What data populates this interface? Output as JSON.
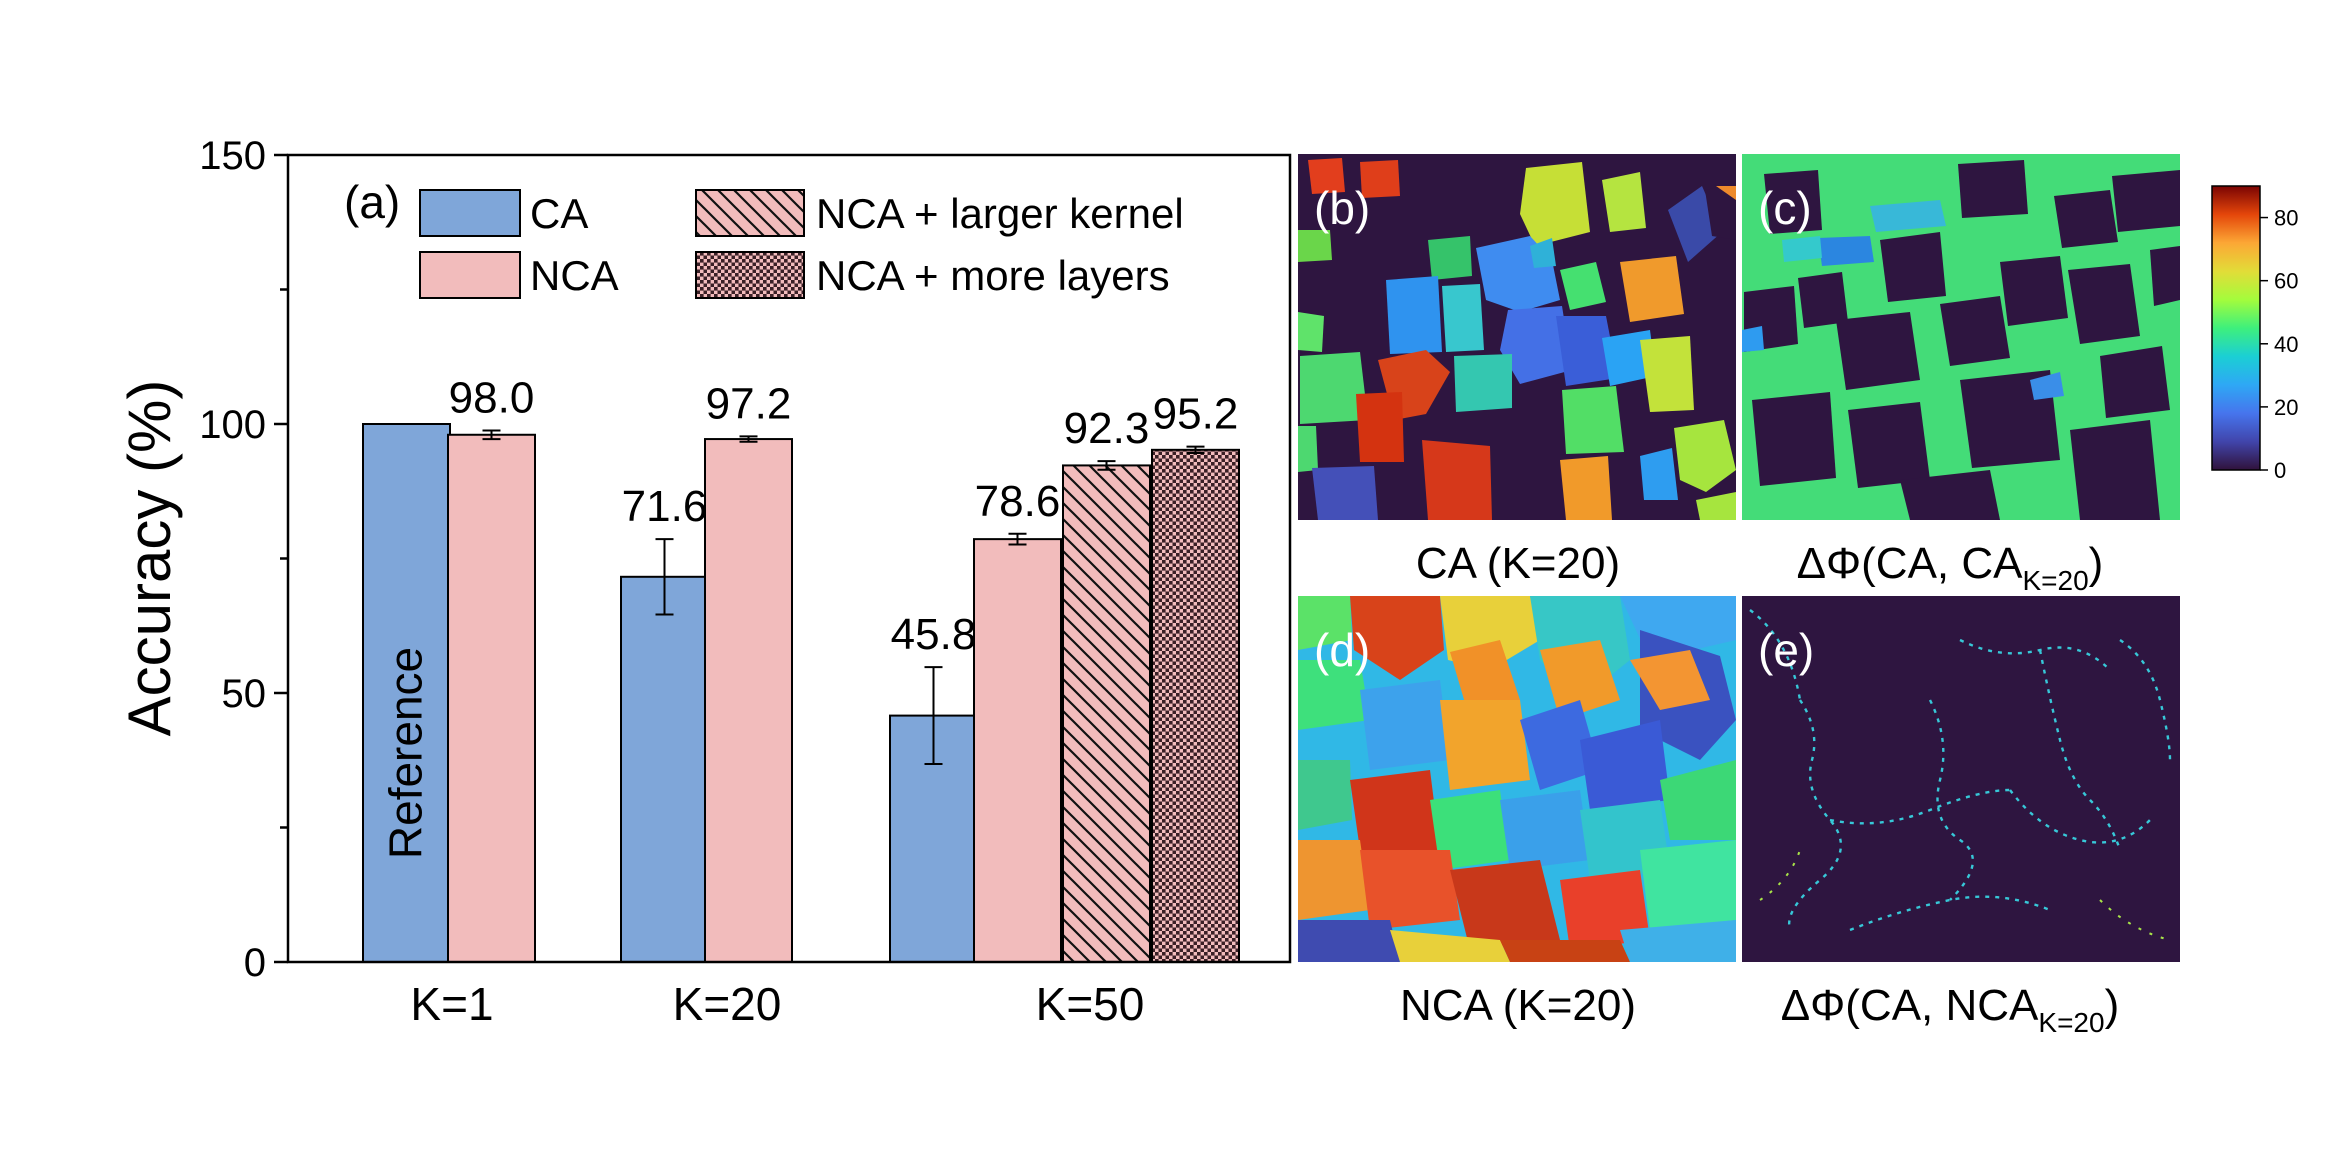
{
  "chart_data": {
    "type": "bar",
    "panel_label": "(a)",
    "ylabel": "Accuracy (%)",
    "xlabel": "",
    "ylim": [
      0,
      150
    ],
    "yticks": [
      0,
      50,
      100,
      150
    ],
    "y_minor_step": 25,
    "grid": false,
    "legend_position": "top",
    "groups": [
      {
        "label": "K=1",
        "bars": [
          {
            "series": "CA",
            "value": 100,
            "error": null,
            "label": "",
            "inner_text": "Reference"
          },
          {
            "series": "NCA",
            "value": 98.0,
            "error": 0.8,
            "label": "98.0"
          }
        ]
      },
      {
        "label": "K=20",
        "bars": [
          {
            "series": "CA",
            "value": 71.6,
            "error": 7.0,
            "label": "71.6"
          },
          {
            "series": "NCA",
            "value": 97.2,
            "error": 0.5,
            "label": "97.2"
          }
        ]
      },
      {
        "label": "K=50",
        "bars": [
          {
            "series": "CA",
            "value": 45.8,
            "error": 9.0,
            "label": "45.8"
          },
          {
            "series": "NCA",
            "value": 78.6,
            "error": 1.0,
            "label": "78.6"
          },
          {
            "series": "NCA + larger kernel",
            "value": 92.3,
            "error": 0.8,
            "label": "92.3"
          },
          {
            "series": "NCA + more layers",
            "value": 95.2,
            "error": 0.6,
            "label": "95.2"
          }
        ]
      }
    ],
    "series": [
      {
        "name": "CA",
        "color": "#7fa6d9",
        "pattern": "solid"
      },
      {
        "name": "NCA",
        "color": "#f2bcbc",
        "pattern": "solid"
      },
      {
        "name": "NCA + larger kernel",
        "color": "#f2bcbc",
        "pattern": "hatch"
      },
      {
        "name": "NCA + more layers",
        "color": "#f2bcbc",
        "pattern": "dots"
      }
    ]
  },
  "maps": {
    "panels": [
      {
        "label": "(b)",
        "caption": "CA (K=20)",
        "caption_sub": ""
      },
      {
        "label": "(c)",
        "caption": "ΔΦ(CA, CA",
        "caption_sub": "K=20",
        "caption_end": ")"
      },
      {
        "label": "(d)",
        "caption": "NCA (K=20)",
        "caption_sub": ""
      },
      {
        "label": "(e)",
        "caption": "ΔΦ(CA, NCA",
        "caption_sub": "K=20",
        "caption_end": ")"
      }
    ],
    "colorbar": {
      "ticks": [
        0,
        20,
        40,
        60,
        80
      ],
      "min": 0,
      "max": 90
    }
  }
}
